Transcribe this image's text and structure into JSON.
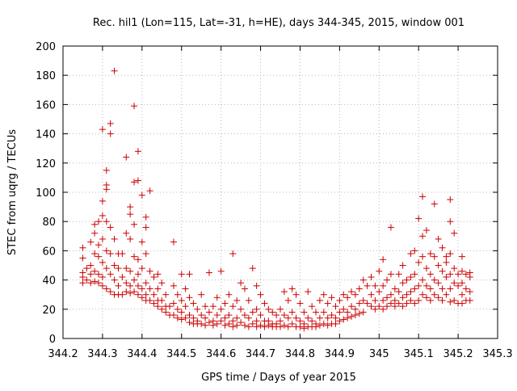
{
  "chart_data": {
    "type": "scatter",
    "title": "Rec. hil1 (Lon=115, Lat=-31, h=HE), days 344-345, 2015, window 001",
    "xlabel": "GPS time / Days of year 2015",
    "ylabel": "STEC from uqrg / TECUs",
    "xlim": [
      344.2,
      345.3
    ],
    "ylim": [
      0,
      200
    ],
    "x_ticks": [
      "344.2",
      "344.3",
      "344.4",
      "344.5",
      "344.6",
      "344.7",
      "344.8",
      "344.9",
      "345",
      "345.1",
      "345.2",
      "345.3"
    ],
    "y_ticks": [
      "0",
      "20",
      "40",
      "60",
      "80",
      "100",
      "120",
      "140",
      "160",
      "180",
      "200"
    ],
    "grid": true,
    "marker": "plus",
    "color": "#cc0000",
    "points": [
      [
        344.25,
        62
      ],
      [
        344.25,
        55
      ],
      [
        344.25,
        45
      ],
      [
        344.25,
        42
      ],
      [
        344.25,
        38
      ],
      [
        344.26,
        48
      ],
      [
        344.26,
        40
      ],
      [
        344.27,
        66
      ],
      [
        344.27,
        50
      ],
      [
        344.27,
        44
      ],
      [
        344.27,
        38
      ],
      [
        344.28,
        78
      ],
      [
        344.28,
        72
      ],
      [
        344.28,
        58
      ],
      [
        344.28,
        46
      ],
      [
        344.28,
        39
      ],
      [
        344.29,
        80
      ],
      [
        344.29,
        64
      ],
      [
        344.29,
        56
      ],
      [
        344.29,
        44
      ],
      [
        344.29,
        38
      ],
      [
        344.3,
        143
      ],
      [
        344.3,
        94
      ],
      [
        344.3,
        84
      ],
      [
        344.3,
        68
      ],
      [
        344.3,
        52
      ],
      [
        344.3,
        42
      ],
      [
        344.3,
        36
      ],
      [
        344.31,
        115
      ],
      [
        344.31,
        105
      ],
      [
        344.31,
        102
      ],
      [
        344.31,
        80
      ],
      [
        344.31,
        60
      ],
      [
        344.31,
        48
      ],
      [
        344.31,
        34
      ],
      [
        344.32,
        147
      ],
      [
        344.32,
        140
      ],
      [
        344.32,
        76
      ],
      [
        344.32,
        58
      ],
      [
        344.32,
        44
      ],
      [
        344.32,
        32
      ],
      [
        344.33,
        183
      ],
      [
        344.33,
        68
      ],
      [
        344.33,
        50
      ],
      [
        344.33,
        40
      ],
      [
        344.33,
        30
      ],
      [
        344.34,
        58
      ],
      [
        344.34,
        48
      ],
      [
        344.34,
        36
      ],
      [
        344.34,
        30
      ],
      [
        344.35,
        58
      ],
      [
        344.35,
        42
      ],
      [
        344.35,
        30
      ],
      [
        344.36,
        124
      ],
      [
        344.36,
        72
      ],
      [
        344.36,
        48
      ],
      [
        344.36,
        38
      ],
      [
        344.36,
        32
      ],
      [
        344.37,
        90
      ],
      [
        344.37,
        85
      ],
      [
        344.37,
        68
      ],
      [
        344.37,
        46
      ],
      [
        344.37,
        36
      ],
      [
        344.37,
        31
      ],
      [
        344.38,
        159
      ],
      [
        344.38,
        107
      ],
      [
        344.38,
        78
      ],
      [
        344.38,
        56
      ],
      [
        344.38,
        40
      ],
      [
        344.38,
        32
      ],
      [
        344.39,
        128
      ],
      [
        344.39,
        108
      ],
      [
        344.39,
        54
      ],
      [
        344.39,
        44
      ],
      [
        344.39,
        36
      ],
      [
        344.39,
        30
      ],
      [
        344.4,
        98
      ],
      [
        344.4,
        66
      ],
      [
        344.4,
        48
      ],
      [
        344.4,
        34
      ],
      [
        344.4,
        28
      ],
      [
        344.41,
        83
      ],
      [
        344.41,
        76
      ],
      [
        344.41,
        58
      ],
      [
        344.41,
        38
      ],
      [
        344.41,
        30
      ],
      [
        344.41,
        26
      ],
      [
        344.42,
        101
      ],
      [
        344.42,
        46
      ],
      [
        344.42,
        34
      ],
      [
        344.42,
        26
      ],
      [
        344.43,
        42
      ],
      [
        344.43,
        30
      ],
      [
        344.43,
        24
      ],
      [
        344.44,
        44
      ],
      [
        344.44,
        34
      ],
      [
        344.44,
        26
      ],
      [
        344.44,
        22
      ],
      [
        344.45,
        38
      ],
      [
        344.45,
        26
      ],
      [
        344.45,
        20
      ],
      [
        344.46,
        30
      ],
      [
        344.46,
        22
      ],
      [
        344.46,
        18
      ],
      [
        344.47,
        22
      ],
      [
        344.47,
        16
      ],
      [
        344.48,
        66
      ],
      [
        344.48,
        36
      ],
      [
        344.48,
        24
      ],
      [
        344.48,
        16
      ],
      [
        344.49,
        30
      ],
      [
        344.49,
        20
      ],
      [
        344.49,
        14
      ],
      [
        344.5,
        44
      ],
      [
        344.5,
        26
      ],
      [
        344.5,
        18
      ],
      [
        344.5,
        13
      ],
      [
        344.51,
        34
      ],
      [
        344.51,
        22
      ],
      [
        344.51,
        14
      ],
      [
        344.52,
        44
      ],
      [
        344.52,
        28
      ],
      [
        344.52,
        16
      ],
      [
        344.52,
        11
      ],
      [
        344.53,
        24
      ],
      [
        344.53,
        14
      ],
      [
        344.53,
        10
      ],
      [
        344.54,
        20
      ],
      [
        344.54,
        12
      ],
      [
        344.54,
        10
      ],
      [
        344.55,
        30
      ],
      [
        344.55,
        16
      ],
      [
        344.55,
        10
      ],
      [
        344.56,
        22
      ],
      [
        344.56,
        14
      ],
      [
        344.56,
        9
      ],
      [
        344.57,
        45
      ],
      [
        344.57,
        18
      ],
      [
        344.57,
        11
      ],
      [
        344.58,
        22
      ],
      [
        344.58,
        12
      ],
      [
        344.58,
        9
      ],
      [
        344.59,
        28
      ],
      [
        344.59,
        16
      ],
      [
        344.59,
        10
      ],
      [
        344.6,
        46
      ],
      [
        344.6,
        20
      ],
      [
        344.6,
        12
      ],
      [
        344.61,
        24
      ],
      [
        344.61,
        14
      ],
      [
        344.61,
        9
      ],
      [
        344.62,
        30
      ],
      [
        344.62,
        16
      ],
      [
        344.62,
        10
      ],
      [
        344.63,
        58
      ],
      [
        344.63,
        22
      ],
      [
        344.63,
        12
      ],
      [
        344.63,
        8
      ],
      [
        344.64,
        26
      ],
      [
        344.64,
        14
      ],
      [
        344.64,
        9
      ],
      [
        344.65,
        38
      ],
      [
        344.65,
        20
      ],
      [
        344.65,
        11
      ],
      [
        344.66,
        34
      ],
      [
        344.66,
        16
      ],
      [
        344.66,
        9
      ],
      [
        344.67,
        26
      ],
      [
        344.67,
        14
      ],
      [
        344.67,
        8
      ],
      [
        344.68,
        48
      ],
      [
        344.68,
        18
      ],
      [
        344.68,
        10
      ],
      [
        344.69,
        36
      ],
      [
        344.69,
        20
      ],
      [
        344.69,
        12
      ],
      [
        344.69,
        8
      ],
      [
        344.7,
        30
      ],
      [
        344.7,
        16
      ],
      [
        344.7,
        9
      ],
      [
        344.71,
        24
      ],
      [
        344.71,
        12
      ],
      [
        344.71,
        8
      ],
      [
        344.72,
        20
      ],
      [
        344.72,
        12
      ],
      [
        344.72,
        9
      ],
      [
        344.73,
        18
      ],
      [
        344.73,
        10
      ],
      [
        344.73,
        8
      ],
      [
        344.74,
        16
      ],
      [
        344.74,
        10
      ],
      [
        344.74,
        8
      ],
      [
        344.75,
        20
      ],
      [
        344.75,
        12
      ],
      [
        344.75,
        8
      ],
      [
        344.76,
        32
      ],
      [
        344.76,
        16
      ],
      [
        344.76,
        9
      ],
      [
        344.77,
        26
      ],
      [
        344.77,
        14
      ],
      [
        344.77,
        8
      ],
      [
        344.78,
        34
      ],
      [
        344.78,
        18
      ],
      [
        344.78,
        10
      ],
      [
        344.79,
        30
      ],
      [
        344.79,
        14
      ],
      [
        344.79,
        8
      ],
      [
        344.8,
        24
      ],
      [
        344.8,
        12
      ],
      [
        344.8,
        8
      ],
      [
        344.81,
        18
      ],
      [
        344.81,
        10
      ],
      [
        344.81,
        7
      ],
      [
        344.82,
        32
      ],
      [
        344.82,
        14
      ],
      [
        344.82,
        8
      ],
      [
        344.83,
        22
      ],
      [
        344.83,
        12
      ],
      [
        344.83,
        8
      ],
      [
        344.84,
        18
      ],
      [
        344.84,
        10
      ],
      [
        344.84,
        8
      ],
      [
        344.85,
        26
      ],
      [
        344.85,
        14
      ],
      [
        344.85,
        9
      ],
      [
        344.86,
        30
      ],
      [
        344.86,
        18
      ],
      [
        344.86,
        10
      ],
      [
        344.87,
        24
      ],
      [
        344.87,
        14
      ],
      [
        344.87,
        9
      ],
      [
        344.88,
        28
      ],
      [
        344.88,
        16
      ],
      [
        344.88,
        10
      ],
      [
        344.89,
        22
      ],
      [
        344.89,
        14
      ],
      [
        344.89,
        10
      ],
      [
        344.9,
        26
      ],
      [
        344.9,
        18
      ],
      [
        344.9,
        12
      ],
      [
        344.91,
        30
      ],
      [
        344.91,
        20
      ],
      [
        344.91,
        13
      ],
      [
        344.92,
        28
      ],
      [
        344.92,
        18
      ],
      [
        344.92,
        14
      ],
      [
        344.93,
        32
      ],
      [
        344.93,
        22
      ],
      [
        344.93,
        15
      ],
      [
        344.94,
        30
      ],
      [
        344.94,
        20
      ],
      [
        344.94,
        16
      ],
      [
        344.95,
        34
      ],
      [
        344.95,
        24
      ],
      [
        344.95,
        17
      ],
      [
        344.96,
        40
      ],
      [
        344.96,
        26
      ],
      [
        344.96,
        18
      ],
      [
        344.97,
        36
      ],
      [
        344.97,
        24
      ],
      [
        344.98,
        42
      ],
      [
        344.98,
        30
      ],
      [
        344.98,
        22
      ],
      [
        344.99,
        36
      ],
      [
        344.99,
        26
      ],
      [
        344.99,
        20
      ],
      [
        345.0,
        46
      ],
      [
        345.0,
        32
      ],
      [
        345.0,
        22
      ],
      [
        345.01,
        54
      ],
      [
        345.01,
        36
      ],
      [
        345.01,
        26
      ],
      [
        345.01,
        20
      ],
      [
        345.02,
        40
      ],
      [
        345.02,
        28
      ],
      [
        345.02,
        22
      ],
      [
        345.03,
        76
      ],
      [
        345.03,
        44
      ],
      [
        345.03,
        30
      ],
      [
        345.03,
        24
      ],
      [
        345.04,
        34
      ],
      [
        345.04,
        26
      ],
      [
        345.04,
        22
      ],
      [
        345.05,
        44
      ],
      [
        345.05,
        32
      ],
      [
        345.05,
        24
      ],
      [
        345.06,
        50
      ],
      [
        345.06,
        38
      ],
      [
        345.06,
        28
      ],
      [
        345.06,
        22
      ],
      [
        345.07,
        40
      ],
      [
        345.07,
        30
      ],
      [
        345.07,
        24
      ],
      [
        345.08,
        58
      ],
      [
        345.08,
        42
      ],
      [
        345.08,
        32
      ],
      [
        345.08,
        26
      ],
      [
        345.09,
        60
      ],
      [
        345.09,
        44
      ],
      [
        345.09,
        34
      ],
      [
        345.09,
        24
      ],
      [
        345.1,
        82
      ],
      [
        345.1,
        52
      ],
      [
        345.1,
        36
      ],
      [
        345.1,
        26
      ],
      [
        345.11,
        97
      ],
      [
        345.11,
        70
      ],
      [
        345.11,
        56
      ],
      [
        345.11,
        40
      ],
      [
        345.11,
        30
      ],
      [
        345.12,
        74
      ],
      [
        345.12,
        48
      ],
      [
        345.12,
        36
      ],
      [
        345.12,
        28
      ],
      [
        345.13,
        58
      ],
      [
        345.13,
        44
      ],
      [
        345.13,
        34
      ],
      [
        345.13,
        26
      ],
      [
        345.14,
        92
      ],
      [
        345.14,
        56
      ],
      [
        345.14,
        40
      ],
      [
        345.14,
        30
      ],
      [
        345.15,
        68
      ],
      [
        345.15,
        50
      ],
      [
        345.15,
        38
      ],
      [
        345.15,
        28
      ],
      [
        345.16,
        62
      ],
      [
        345.16,
        46
      ],
      [
        345.16,
        34
      ],
      [
        345.16,
        26
      ],
      [
        345.17,
        56
      ],
      [
        345.17,
        52
      ],
      [
        345.17,
        42
      ],
      [
        345.17,
        30
      ],
      [
        345.18,
        95
      ],
      [
        345.18,
        80
      ],
      [
        345.18,
        58
      ],
      [
        345.18,
        44
      ],
      [
        345.18,
        34
      ],
      [
        345.18,
        25
      ],
      [
        345.19,
        72
      ],
      [
        345.19,
        48
      ],
      [
        345.19,
        38
      ],
      [
        345.19,
        26
      ],
      [
        345.2,
        44
      ],
      [
        345.2,
        36
      ],
      [
        345.2,
        24
      ],
      [
        345.21,
        56
      ],
      [
        345.21,
        46
      ],
      [
        345.21,
        38
      ],
      [
        345.21,
        30
      ],
      [
        345.21,
        24
      ],
      [
        345.22,
        44
      ],
      [
        345.22,
        34
      ],
      [
        345.22,
        26
      ],
      [
        345.23,
        45
      ],
      [
        345.23,
        42
      ],
      [
        345.23,
        32
      ],
      [
        345.23,
        26
      ]
    ]
  }
}
